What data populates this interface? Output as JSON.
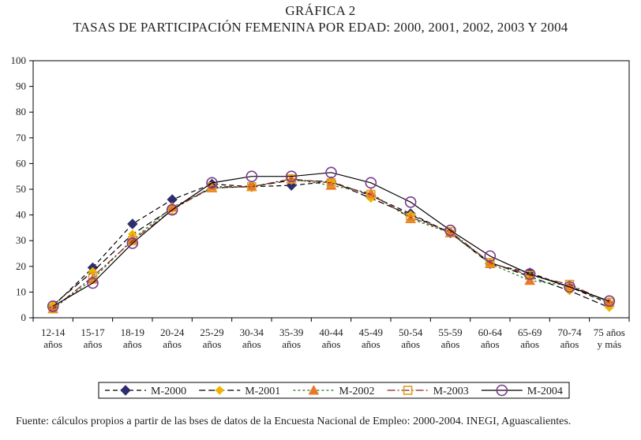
{
  "title_line1": "GRÁFICA 2",
  "title_line2": "TASAS DE PARTICIPACIÓN FEMENINA POR EDAD: 2000, 2001, 2002, 2003 Y 2004",
  "source": "Fuente: cálculos propios a partir de las bses de datos de la Encuesta Nacional de Empleo: 2000-2004. INEGI, Aguascalientes.",
  "chart_data": {
    "type": "line",
    "title": "TASAS DE PARTICIPACIÓN FEMENINA POR EDAD: 2000, 2001, 2002, 2003 Y 2004",
    "xlabel": "",
    "ylabel": "",
    "ylim": [
      0,
      100
    ],
    "yticks": [
      0,
      10,
      20,
      30,
      40,
      50,
      60,
      70,
      80,
      90,
      100
    ],
    "grid": false,
    "legend_position": "bottom",
    "categories": [
      [
        "12-14",
        "años"
      ],
      [
        "15-17",
        "años"
      ],
      [
        "18-19",
        "años"
      ],
      [
        "20-24",
        "años"
      ],
      [
        "25-29",
        "años"
      ],
      [
        "30-34",
        "años"
      ],
      [
        "35-39",
        "años"
      ],
      [
        "40-44",
        "años"
      ],
      [
        "45-49",
        "años"
      ],
      [
        "50-54",
        "años"
      ],
      [
        "55-59",
        "años"
      ],
      [
        "60-64",
        "años"
      ],
      [
        "65-69",
        "años"
      ],
      [
        "70-74",
        "años"
      ],
      [
        "75 años",
        "y más"
      ]
    ],
    "series": [
      {
        "name": "M-2000",
        "color": "#2e2e6e",
        "marker": "diamond",
        "dash": "6,4",
        "values": [
          4.5,
          19.5,
          36.5,
          46,
          52,
          51,
          51.5,
          53,
          47.5,
          40.5,
          33,
          21,
          17.5,
          12,
          5.5
        ]
      },
      {
        "name": "M-2001",
        "color": "#f0b400",
        "marker": "diamond-small",
        "dash": "8,4",
        "values": [
          5,
          18,
          32.5,
          42.5,
          50.5,
          51,
          53.5,
          53,
          46.5,
          40,
          33,
          21.5,
          16,
          10.5,
          4
        ]
      },
      {
        "name": "M-2002",
        "color": "#e8782a",
        "marker": "triangle",
        "dash": "3,3",
        "values": [
          3.5,
          15,
          30.5,
          43,
          50.5,
          51,
          54,
          51.5,
          48.5,
          38.5,
          33,
          21,
          14.5,
          12.5,
          6
        ]
      },
      {
        "name": "M-2003",
        "color": "#e0a020",
        "marker": "square",
        "dash": "10,3,2,3",
        "values": [
          3.5,
          16,
          30,
          42,
          51,
          51,
          54,
          52.5,
          48,
          39,
          33.5,
          21.5,
          16.5,
          13,
          6
        ]
      },
      {
        "name": "M-2004",
        "color": "#7a3a8e",
        "marker": "circle",
        "dash": "",
        "values": [
          4.5,
          13.5,
          29,
          42,
          52.5,
          55,
          55,
          56.5,
          52.5,
          45,
          34,
          24,
          17,
          12,
          6.5
        ]
      }
    ]
  }
}
